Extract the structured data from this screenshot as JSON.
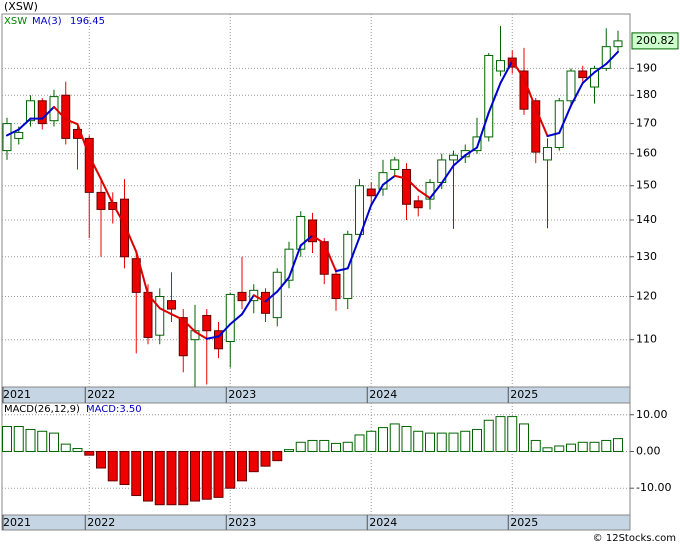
{
  "chart_data": [
    {
      "type": "candlestick",
      "title": "(XSW)",
      "legend": "XSW",
      "log_scale": true,
      "grid": true,
      "up_color": "#006400",
      "down_color": "#ee0000",
      "categories": [
        "2021",
        null,
        null,
        null,
        null,
        null,
        null,
        "2022",
        null,
        null,
        null,
        null,
        null,
        null,
        null,
        null,
        null,
        null,
        null,
        "2023",
        null,
        null,
        null,
        null,
        null,
        null,
        null,
        null,
        null,
        null,
        null,
        "2024",
        null,
        null,
        null,
        null,
        null,
        null,
        null,
        null,
        null,
        null,
        null,
        "2025",
        null,
        null,
        null,
        null,
        null,
        null,
        null,
        null,
        null
      ],
      "open": [
        161,
        165,
        171,
        178,
        171,
        180,
        168,
        165,
        148,
        145,
        146,
        129.5,
        121,
        111,
        119,
        115,
        110,
        115.5,
        112,
        109.6,
        121,
        119,
        121,
        115,
        124,
        132,
        140,
        134,
        125.5,
        119.5,
        136,
        149,
        149,
        155,
        155,
        145.5,
        146,
        151,
        158,
        159,
        161,
        165.5,
        189,
        194,
        189,
        178,
        158,
        162,
        178,
        189,
        183,
        190,
        198.5
      ],
      "high": [
        172,
        169,
        180,
        179,
        182,
        185,
        170,
        166,
        152,
        148,
        152,
        131,
        123,
        122,
        126,
        117,
        118,
        117,
        114,
        121,
        130,
        123,
        122,
        127,
        134,
        142.5,
        142,
        135,
        127,
        137,
        152,
        151,
        158,
        159,
        157,
        147,
        152,
        160,
        161,
        163,
        172,
        196,
        207,
        197,
        198,
        179,
        165,
        179,
        190,
        191,
        191,
        206,
        205
      ],
      "low": [
        158,
        163,
        169,
        168,
        169,
        163,
        155,
        135,
        130,
        139,
        127,
        107,
        109,
        109,
        114,
        103,
        100,
        100.5,
        106,
        104,
        117,
        116,
        114,
        113,
        122,
        130,
        131,
        123,
        116.6,
        117,
        135,
        144,
        147,
        153,
        140,
        141,
        143,
        149,
        137.5,
        157,
        160,
        164,
        187,
        188,
        173,
        157,
        137.7,
        161,
        176,
        185,
        177,
        189,
        196
      ],
      "close": [
        170,
        167,
        178,
        170,
        179.5,
        165,
        165,
        148,
        143,
        143,
        130,
        121,
        110.5,
        120,
        117,
        106.5,
        112,
        112,
        108,
        120.5,
        119,
        121.5,
        116,
        126,
        132,
        141,
        134,
        125.5,
        119.5,
        136,
        150,
        147,
        154,
        158,
        144.5,
        143.5,
        151,
        158,
        159.5,
        161,
        165.5,
        195,
        193,
        190.5,
        175,
        160.5,
        162,
        178,
        189,
        186.5,
        190,
        198.5,
        200.82
      ],
      "ma": {
        "name": "MA(3)",
        "up_color": "#0000cc",
        "down_color": "#dd0000",
        "values": [
          166,
          168,
          171.7,
          171.7,
          175.8,
          171.5,
          169.8,
          159.3,
          152,
          144.7,
          138.7,
          131.3,
          120.5,
          117.2,
          115.8,
          114.5,
          111.8,
          110.2,
          110.7,
          113.5,
          115.8,
          120.3,
          118.8,
          121.2,
          124.7,
          133,
          135.7,
          133.5,
          126.3,
          127,
          135.2,
          144.3,
          150.3,
          153,
          152.2,
          148.7,
          146.3,
          150.8,
          156.2,
          159.5,
          162,
          173.8,
          184.5,
          192.8,
          186.2,
          175.3,
          165.8,
          166.8,
          176.3,
          184.5,
          188.5,
          191.7,
          196.45
        ]
      },
      "ylim": [
        100,
        212
      ],
      "yticks": [
        110,
        120,
        130,
        140,
        150,
        160,
        170,
        180,
        190
      ]
    },
    {
      "type": "bar",
      "title": "MACD(26,12,9)",
      "annotation": "MACD:3.50",
      "grid": true,
      "positive_color": "#006400",
      "negative_color": "#ee0000",
      "categories": [
        "2021",
        null,
        null,
        null,
        null,
        null,
        null,
        "2022",
        null,
        null,
        null,
        null,
        null,
        null,
        null,
        null,
        null,
        null,
        null,
        "2023",
        null,
        null,
        null,
        null,
        null,
        null,
        null,
        null,
        null,
        null,
        null,
        "2024",
        null,
        null,
        null,
        null,
        null,
        null,
        null,
        null,
        null,
        null,
        null,
        "2025",
        null,
        null,
        null,
        null,
        null,
        null,
        null,
        null,
        null
      ],
      "values": [
        6.8,
        6.8,
        6,
        5.5,
        5,
        2,
        0.8,
        -1,
        -4.5,
        -8,
        -9,
        -12,
        -13.5,
        -14.5,
        -14.5,
        -14.5,
        -13.5,
        -13,
        -12.5,
        -10,
        -8,
        -5.5,
        -4,
        -2.5,
        0.5,
        2.5,
        3,
        3,
        2.2,
        2.5,
        4.5,
        5.5,
        6.5,
        7.5,
        6.8,
        5.5,
        5,
        5,
        5,
        5.5,
        6,
        8.5,
        9.5,
        9.5,
        7.5,
        3,
        1,
        1.5,
        2,
        2.5,
        2.5,
        3,
        3.5
      ],
      "ylim": [
        -17.3,
        13.2
      ],
      "yticks": [
        {
          "value": 10,
          "label": "10.00"
        },
        {
          "value": 0,
          "label": "0.00"
        },
        {
          "value": -10,
          "label": "-10.00"
        }
      ]
    }
  ],
  "footer": "© 12Stocks.com"
}
